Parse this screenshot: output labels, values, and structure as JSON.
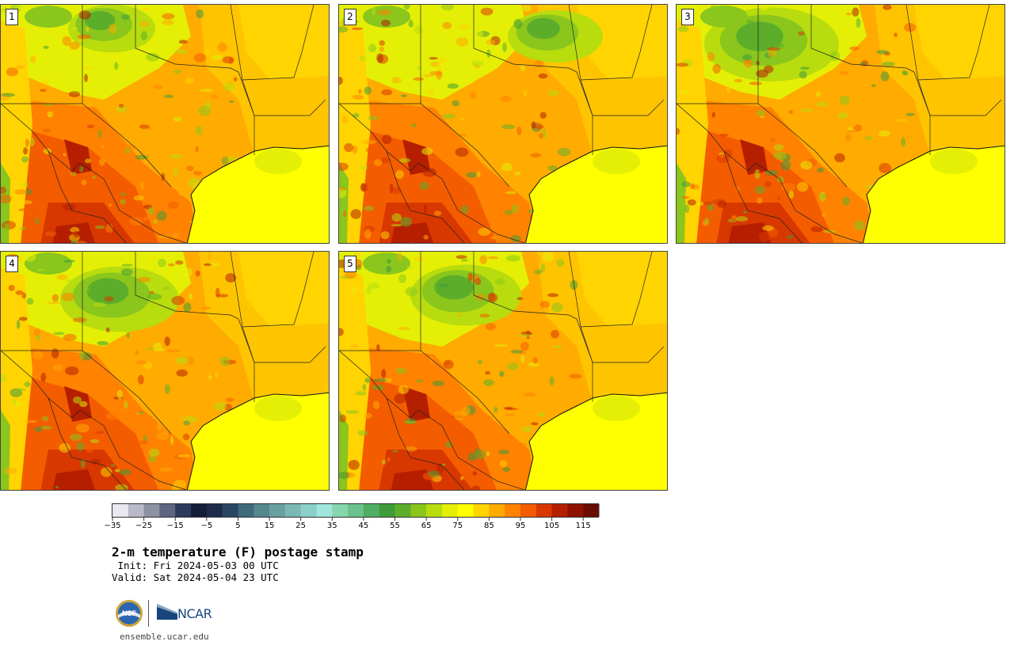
{
  "panels": [
    {
      "label": "1"
    },
    {
      "label": "2"
    },
    {
      "label": "3"
    },
    {
      "label": "4"
    },
    {
      "label": "5"
    }
  ],
  "colorbar": {
    "tick_labels": [
      "−35",
      "−25",
      "−15",
      "−5",
      "5",
      "15",
      "25",
      "35",
      "45",
      "55",
      "65",
      "75",
      "85",
      "95",
      "105",
      "115"
    ],
    "colors": [
      "#e8e8ee",
      "#b9b9c7",
      "#8d91a3",
      "#5d6580",
      "#2d3a5c",
      "#141d3a",
      "#1e2c4a",
      "#2b4662",
      "#3f6a7c",
      "#55878f",
      "#68a09f",
      "#7ab8b3",
      "#8ccfc8",
      "#a0e6dc",
      "#86d6ae",
      "#6cc28d",
      "#4fae63",
      "#3f9a3a",
      "#5cae2a",
      "#8ac61c",
      "#b8dc0e",
      "#e4ef05",
      "#ffff00",
      "#ffd400",
      "#ffab00",
      "#ff8200",
      "#f45c00",
      "#d83800",
      "#b51f00",
      "#8f1200",
      "#6a0e05"
    ]
  },
  "title": "2-m temperature (F) postage stamp",
  "init_line": " Init: Fri 2024-05-03 00 UTC",
  "valid_line": "Valid: Sat 2024-05-04 23 UTC",
  "logos": {
    "nsf": "NSF",
    "ncar": "NCAR"
  },
  "website": "ensemble.ucar.edu"
}
